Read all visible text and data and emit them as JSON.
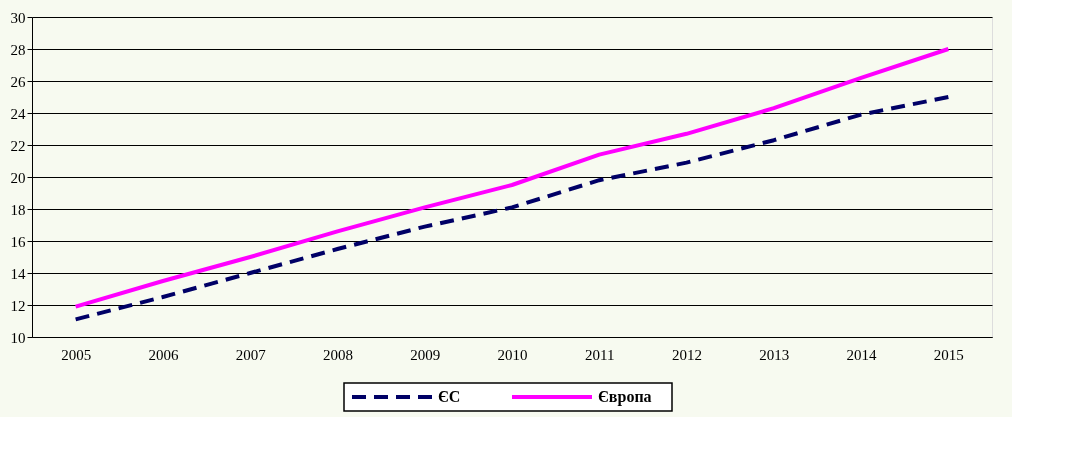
{
  "chart_data": {
    "type": "line",
    "categories": [
      "2005",
      "2006",
      "2007",
      "2008",
      "2009",
      "2010",
      "2011",
      "2012",
      "2013",
      "2014",
      "2015"
    ],
    "series": [
      {
        "name": "ЄС",
        "color": "#000066",
        "line_style": "dashed",
        "values": [
          11.1,
          12.5,
          14.0,
          15.5,
          16.9,
          18.1,
          19.8,
          20.9,
          22.3,
          23.9,
          25.0
        ]
      },
      {
        "name": "Європа",
        "color": "#ff00ff",
        "line_style": "solid",
        "values": [
          11.9,
          13.5,
          15.0,
          16.6,
          18.1,
          19.5,
          21.4,
          22.7,
          24.3,
          26.2,
          28.0
        ]
      }
    ],
    "ylim": [
      10,
      30
    ],
    "yticks": [
      10,
      12,
      14,
      16,
      18,
      20,
      22,
      24,
      26,
      28,
      30
    ],
    "grid": "y",
    "legend": "bottom",
    "marker": "none"
  }
}
